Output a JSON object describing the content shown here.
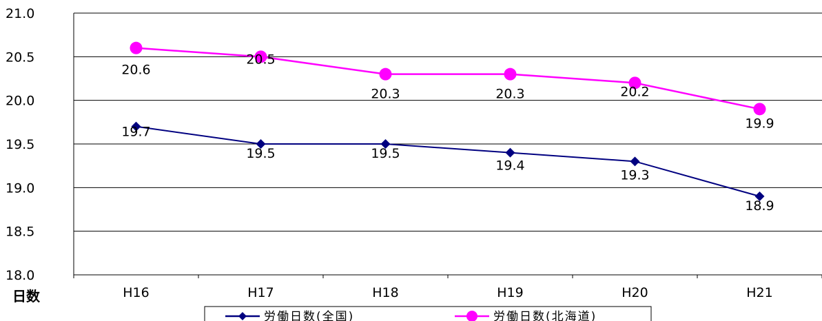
{
  "chart_data": {
    "type": "line",
    "categories": [
      "H16",
      "H17",
      "H18",
      "H19",
      "H20",
      "H21"
    ],
    "series": [
      {
        "name": "労働日数(全国)",
        "values": [
          19.7,
          19.5,
          19.5,
          19.4,
          19.3,
          18.9
        ],
        "color": "#000080",
        "marker": "diamond"
      },
      {
        "name": "労働日数(北海道)",
        "values": [
          20.6,
          20.5,
          20.3,
          20.3,
          20.2,
          19.9
        ],
        "color": "#FF00FF",
        "marker": "circle"
      }
    ],
    "y_ticks": [
      "18.0",
      "18.5",
      "19.0",
      "19.5",
      "20.0",
      "20.5",
      "21.0"
    ],
    "ylim": [
      18.0,
      21.0
    ],
    "ylabel": "日数",
    "grid": true,
    "legend": "bottom"
  }
}
